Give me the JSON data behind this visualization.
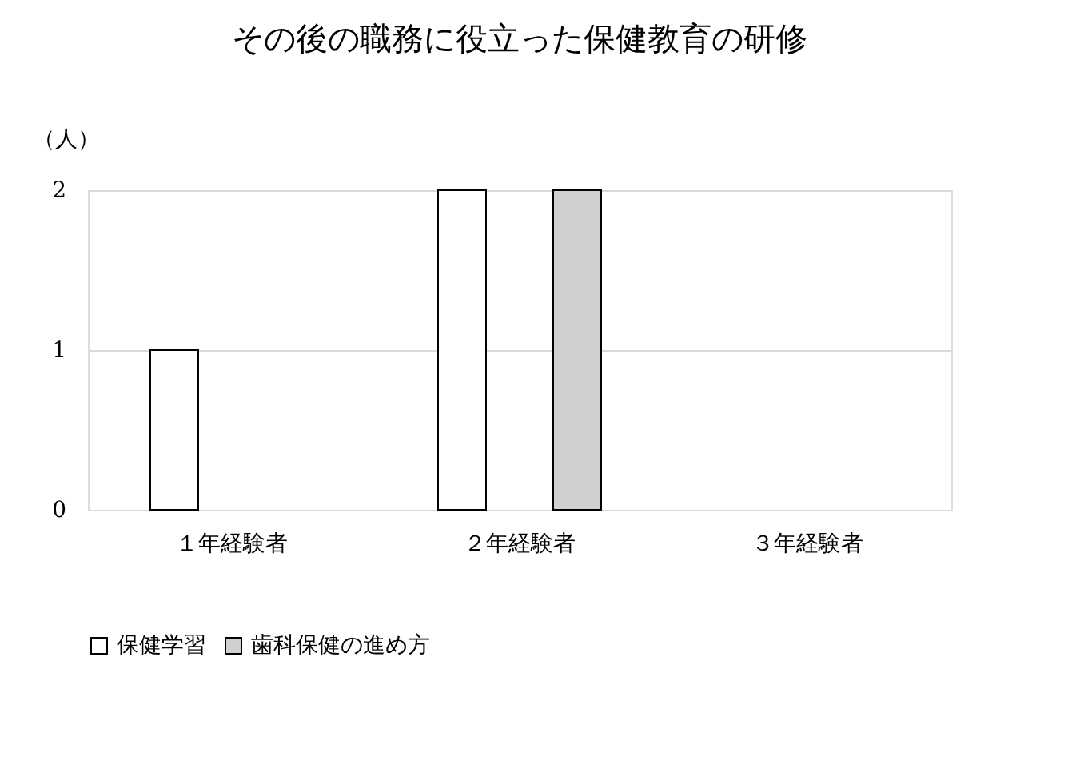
{
  "chart_data": {
    "type": "bar",
    "title": "その後の職務に役立った保健教育の研修",
    "ylabel": "（人）",
    "categories": [
      "１年経験者",
      "２年経験者",
      "３年経験者"
    ],
    "series": [
      {
        "name": "保健学習",
        "color": "#ffffff",
        "values": [
          1,
          2,
          0
        ]
      },
      {
        "name": "歯科保健の進め方",
        "color": "#d0d0d0",
        "values": [
          0,
          2,
          0
        ]
      }
    ],
    "ylim": [
      0,
      2
    ],
    "yticks": [
      0,
      1,
      2
    ],
    "grid": "y",
    "legend": "bottom"
  }
}
